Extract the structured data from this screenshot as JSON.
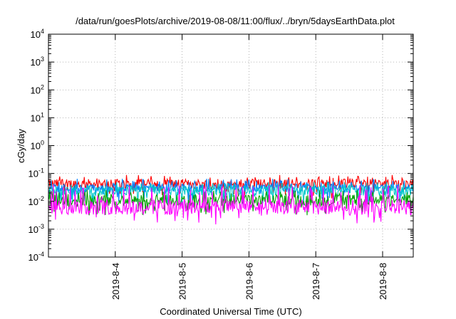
{
  "chart_data": {
    "type": "line",
    "title": "/data/run/goesPlots/archive/2019-08-08/11:00/flux/../bryn/5daysEarthData.plot",
    "xlabel": "Coordinated Universal Time (UTC)",
    "ylabel": "cGy/day",
    "y_scale": "log",
    "ylim": [
      0.0001,
      10000
    ],
    "y_ticks": [
      {
        "base": "10",
        "exp": "-4",
        "value": 0.0001
      },
      {
        "base": "10",
        "exp": "-3",
        "value": 0.001
      },
      {
        "base": "10",
        "exp": "-2",
        "value": 0.01
      },
      {
        "base": "10",
        "exp": "-1",
        "value": 0.1
      },
      {
        "base": "10",
        "exp": "0",
        "value": 1
      },
      {
        "base": "10",
        "exp": "1",
        "value": 10
      },
      {
        "base": "10",
        "exp": "2",
        "value": 100
      },
      {
        "base": "10",
        "exp": "3",
        "value": 1000
      },
      {
        "base": "10",
        "exp": "4",
        "value": 10000
      }
    ],
    "xlim": [
      "2019-08-03 00:00",
      "2019-08-08 11:00"
    ],
    "x_ticks": [
      "2019-8-4",
      "2019-8-5",
      "2019-8-6",
      "2019-8-7",
      "2019-8-8"
    ],
    "grid": true,
    "series": [
      {
        "color": "#ff0000",
        "base": 0.042,
        "spread": 0.35,
        "spike": 0.07
      },
      {
        "color": "#0080ff",
        "base": 0.03,
        "spread": 0.3,
        "spike": 0.05
      },
      {
        "color": "#00c8c8",
        "base": 0.024,
        "spread": 0.35,
        "spike": 0.04
      },
      {
        "color": "#00a000",
        "base": 0.011,
        "spread": 0.4,
        "spike": 0.02
      },
      {
        "color": "#ff00ff",
        "base": 0.0062,
        "spread": 0.55,
        "spike": 0.03
      }
    ]
  }
}
